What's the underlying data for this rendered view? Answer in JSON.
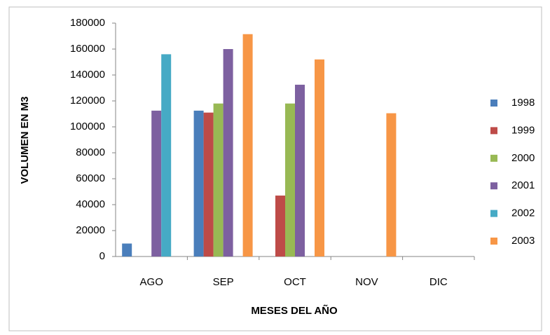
{
  "chart_data": {
    "type": "bar",
    "x_label": "MESES DEL AÑO",
    "y_label": "VOLUMEN EN M3",
    "categories": [
      "AGO",
      "SEP",
      "OCT",
      "NOV",
      "DIC"
    ],
    "series": [
      {
        "name": "1998",
        "color": "#4a7ebb",
        "values": [
          10000,
          112500,
          0,
          0,
          0
        ]
      },
      {
        "name": "1999",
        "color": "#be4b48",
        "values": [
          0,
          111000,
          47000,
          0,
          0
        ]
      },
      {
        "name": "2000",
        "color": "#98b954",
        "values": [
          0,
          118000,
          118000,
          0,
          0
        ]
      },
      {
        "name": "2001",
        "color": "#7d60a0",
        "values": [
          112500,
          160000,
          132500,
          0,
          0
        ]
      },
      {
        "name": "2002",
        "color": "#46aac5",
        "values": [
          156000,
          0,
          0,
          0,
          0
        ]
      },
      {
        "name": "2003",
        "color": "#f79646",
        "values": [
          0,
          171500,
          152000,
          110500,
          0
        ]
      }
    ],
    "ylim": [
      0,
      180000
    ],
    "yticks": [
      0,
      20000,
      40000,
      60000,
      80000,
      100000,
      120000,
      140000,
      160000,
      180000
    ],
    "legend": "right"
  }
}
